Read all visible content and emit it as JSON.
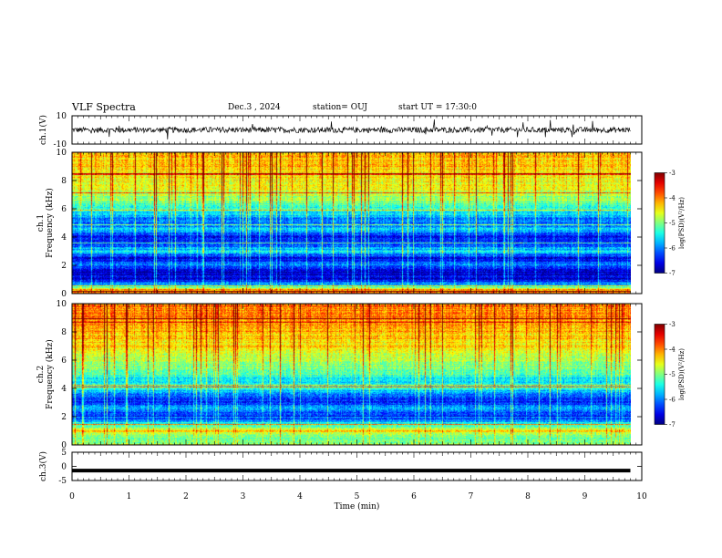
{
  "header": {
    "title": "VLF Spectra",
    "date": "Dec.3 , 2024",
    "station": "station= OUJ",
    "start": "start UT = 17:30:0"
  },
  "chart_data": [
    {
      "type": "line",
      "name": "ch1-waveform",
      "ylabel": "ch.1(V)",
      "ylim": [
        -10,
        10
      ],
      "y_ticks": [
        "10",
        "-10"
      ],
      "xlim": [
        0,
        10
      ],
      "description_values": {
        "baseline": 0,
        "noise_amplitude": 2,
        "spikes_max": 6
      }
    },
    {
      "type": "heatmap",
      "name": "ch1-spectrogram",
      "ylabel": "ch.1\nFrequency (kHz)",
      "ylim": [
        0,
        10
      ],
      "y_ticks": [
        "0",
        "2",
        "4",
        "6",
        "8",
        "10"
      ],
      "xlim": [
        0,
        9.8
      ],
      "colorbar": {
        "label": "log(PSD)(V²/Hz)",
        "range": [
          -7,
          -3
        ],
        "ticks": [
          "-3",
          "-4",
          "-5",
          "-6",
          "-7"
        ]
      },
      "profile_freq_khz": [
        0,
        0.3,
        0.6,
        1,
        1.5,
        2,
        2.5,
        3,
        3.5,
        4,
        4.5,
        5,
        5.5,
        6,
        6.5,
        7,
        8,
        9,
        10
      ],
      "profile_logpsd": [
        -4.0,
        -4.2,
        -5.8,
        -6.6,
        -6.8,
        -6.0,
        -6.6,
        -5.6,
        -6.2,
        -6.6,
        -5.6,
        -6.2,
        -5.8,
        -5.4,
        -5.0,
        -4.8,
        -4.5,
        -4.3,
        -4.3
      ]
    },
    {
      "type": "heatmap",
      "name": "ch2-spectrogram",
      "ylabel": "ch.2\nFrequency (kHz)",
      "ylim": [
        0,
        10
      ],
      "y_ticks": [
        "0",
        "2",
        "4",
        "6",
        "8",
        "10"
      ],
      "xlim": [
        0,
        9.8
      ],
      "colorbar": {
        "label": "log(PSD)(V²/Hz)",
        "range": [
          -7,
          -3
        ],
        "ticks": [
          "-3",
          "-4",
          "-5",
          "-6",
          "-7"
        ]
      },
      "profile_freq_khz": [
        0,
        0.3,
        0.6,
        1,
        1.5,
        2,
        2.5,
        3,
        3.5,
        4,
        4.5,
        5,
        5.5,
        6,
        6.5,
        7,
        8,
        9,
        10
      ],
      "profile_logpsd": [
        -4.8,
        -5.0,
        -5.2,
        -4.4,
        -5.4,
        -6.6,
        -5.8,
        -6.4,
        -6.2,
        -5.4,
        -5.6,
        -5.2,
        -5.0,
        -4.8,
        -4.6,
        -4.4,
        -4.2,
        -4.0,
        -4.0
      ]
    },
    {
      "type": "line",
      "name": "ch3-waveform",
      "ylabel": "ch.3(V)",
      "ylim": [
        -5,
        5
      ],
      "y_ticks": [
        "5",
        "0",
        "-5"
      ],
      "xlim": [
        0,
        10
      ],
      "constant_value": -1.5
    }
  ],
  "x_axis": {
    "label": "Time (min)",
    "ticks": [
      "0",
      "1",
      "2",
      "3",
      "4",
      "5",
      "6",
      "7",
      "8",
      "9",
      "10"
    ],
    "range": [
      0,
      10
    ]
  }
}
